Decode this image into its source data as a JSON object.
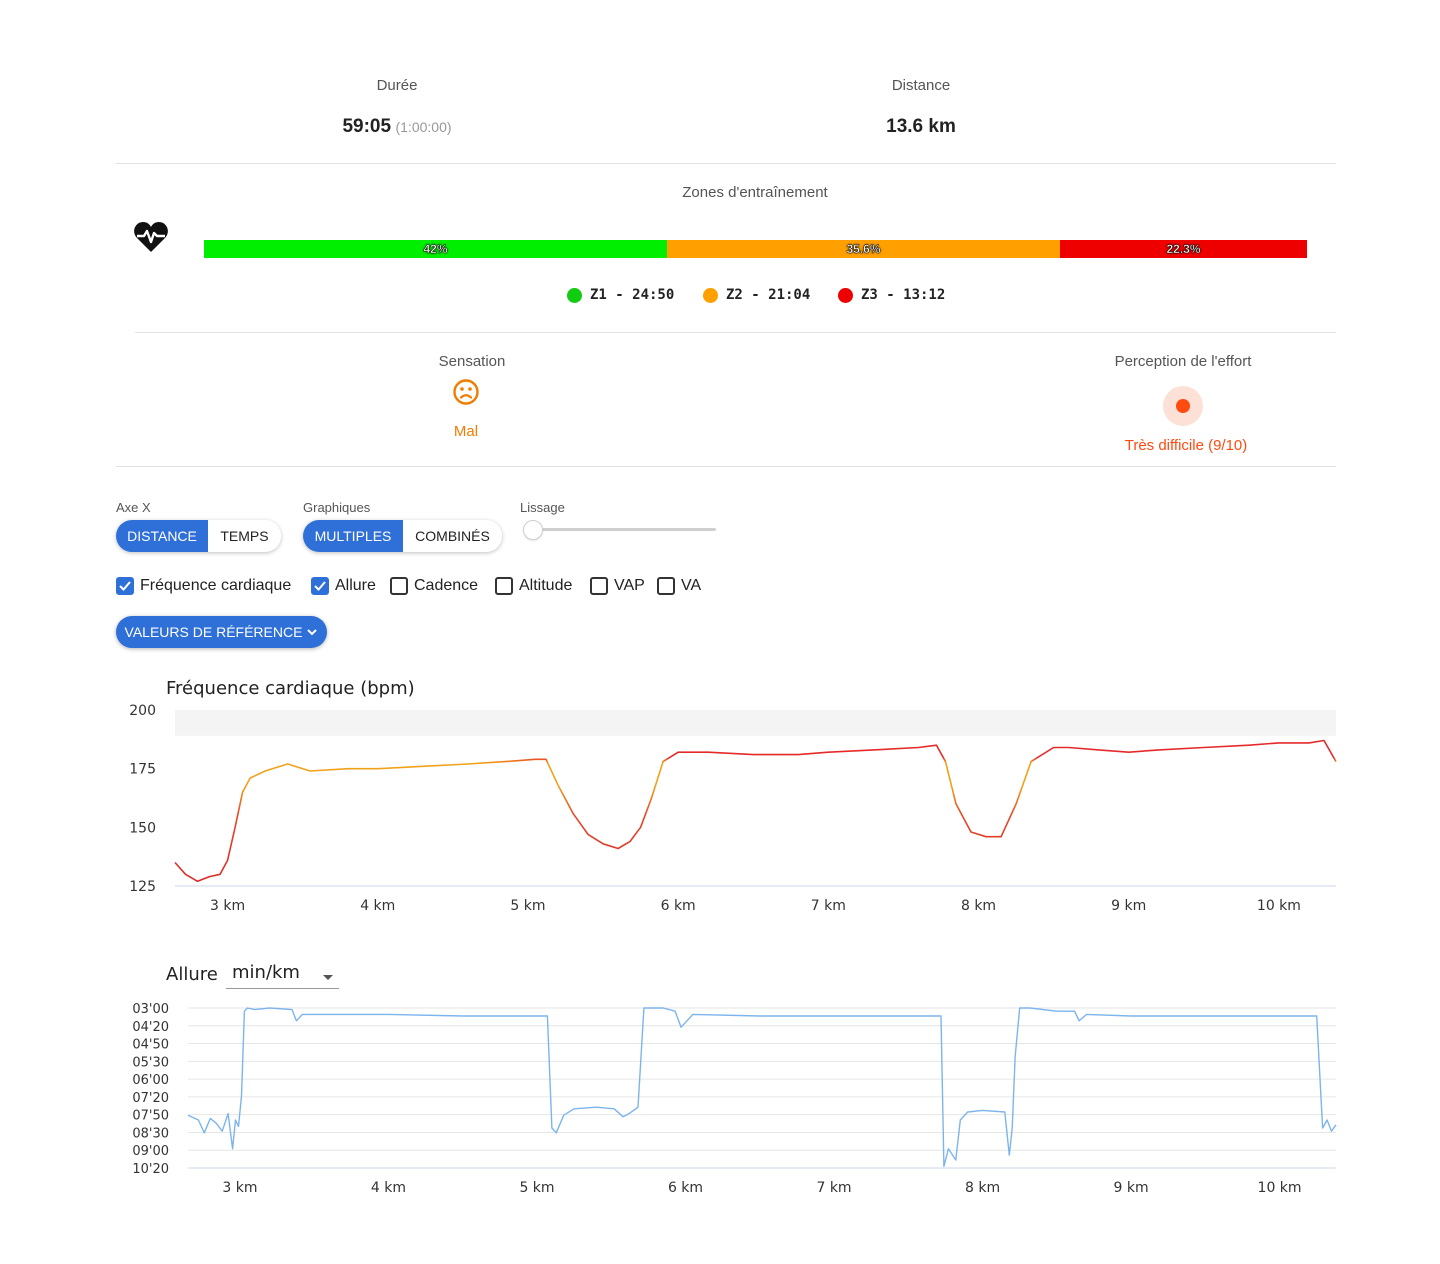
{
  "stats": {
    "duration": {
      "label": "Durée",
      "value": "59:05",
      "sub": "(1:00:00)"
    },
    "distance": {
      "label": "Distance",
      "value": "13.6 km"
    }
  },
  "zones": {
    "title": "Zones d'entraînement",
    "bars": [
      {
        "label": "42%",
        "fraction": 0.42,
        "color": "#00ee00"
      },
      {
        "label": "35.6%",
        "fraction": 0.356,
        "color": "#ffa000"
      },
      {
        "label": "22.3%",
        "fraction": 0.223,
        "color": "#ee0000"
      }
    ],
    "legend": [
      {
        "text": "Z1 - 24:50",
        "color": "#11cc11"
      },
      {
        "text": "Z2 - 21:04",
        "color": "#ffa000"
      },
      {
        "text": "Z3 - 13:12",
        "color": "#ee0000"
      }
    ]
  },
  "sensation": {
    "label": "Sensation",
    "value": "Mal",
    "color": "#ef7d00"
  },
  "effort": {
    "label": "Perception de l'effort",
    "value": "Très difficile (9/10)",
    "color": "#ff4a10"
  },
  "controls": {
    "axe_label": "Axe X",
    "axe_options": [
      "DISTANCE",
      "TEMPS"
    ],
    "graph_label": "Graphiques",
    "graph_options": [
      "MULTIPLES",
      "COMBINÉS"
    ],
    "smooth_label": "Lissage",
    "smooth_value": 0,
    "checkboxes": [
      {
        "label": "Fréquence cardiaque",
        "checked": true
      },
      {
        "label": "Allure",
        "checked": true
      },
      {
        "label": "Cadence",
        "checked": false
      },
      {
        "label": "Altitude",
        "checked": false
      },
      {
        "label": "VAP",
        "checked": false
      },
      {
        "label": "VA",
        "checked": false
      }
    ],
    "ref_button": "VALEURS DE RÉFÉRENCE"
  },
  "chart_data": [
    {
      "type": "line",
      "title": "Fréquence cardiaque (bpm)",
      "y_ticks": [
        "125",
        "150",
        "175",
        "200"
      ],
      "x_ticks": [
        "3 km",
        "4 km",
        "5 km",
        "6 km",
        "7 km",
        "8 km",
        "9 km",
        "10 km"
      ],
      "ylim": [
        125,
        200
      ],
      "xlim": [
        2.65,
        10.38
      ],
      "series": [
        {
          "x": [
            2.65,
            2.72,
            2.8,
            2.88,
            2.95,
            3.0,
            3.05,
            3.1,
            3.15,
            3.25,
            3.4,
            3.55,
            3.8,
            4.0,
            4.3,
            4.6,
            4.85,
            5.05,
            5.12,
            5.2,
            5.3,
            5.4,
            5.5,
            5.6,
            5.68,
            5.75,
            5.82,
            5.9,
            6.0,
            6.2,
            6.5,
            6.8,
            7.0,
            7.3,
            7.6,
            7.72,
            7.78,
            7.85,
            7.95,
            8.05,
            8.15,
            8.25,
            8.35,
            8.5,
            8.6,
            8.8,
            9.0,
            9.2,
            9.5,
            9.8,
            10.0,
            10.2,
            10.3,
            10.38
          ],
          "y": [
            135,
            130,
            127,
            129,
            130,
            136,
            150,
            165,
            171,
            174,
            177,
            174,
            175,
            175,
            176,
            177,
            178,
            179,
            179,
            168,
            156,
            147,
            143,
            141,
            144,
            150,
            162,
            178,
            182,
            182,
            181,
            181,
            182,
            183,
            184,
            185,
            178,
            160,
            148,
            146,
            146,
            160,
            178,
            184,
            184,
            183,
            182,
            183,
            184,
            185,
            186,
            186,
            187,
            178
          ]
        }
      ]
    },
    {
      "type": "line",
      "title": "Allure",
      "unit_select": "min/km",
      "y_ticks": [
        "03'00",
        "04'20",
        "04'50",
        "05'30",
        "06'00",
        "07'20",
        "07'50",
        "08'30",
        "09'00",
        "10'20"
      ],
      "x_ticks": [
        "3 km",
        "4 km",
        "5 km",
        "6 km",
        "7 km",
        "8 km",
        "9 km",
        "10 km"
      ],
      "xlim": [
        2.65,
        10.38
      ],
      "series": [
        {
          "x": [
            2.65,
            2.72,
            2.76,
            2.8,
            2.84,
            2.88,
            2.92,
            2.95,
            2.97,
            2.99,
            3.01,
            3.03,
            3.05,
            3.1,
            3.2,
            3.35,
            3.38,
            3.42,
            3.6,
            4.0,
            4.5,
            4.9,
            5.07,
            5.1,
            5.13,
            5.18,
            5.25,
            5.4,
            5.52,
            5.58,
            5.62,
            5.68,
            5.72,
            5.8,
            5.85,
            5.93,
            5.97,
            6.05,
            6.5,
            7.0,
            7.5,
            7.72,
            7.74,
            7.77,
            7.82,
            7.85,
            7.9,
            8.0,
            8.15,
            8.18,
            8.2,
            8.22,
            8.25,
            8.32,
            8.5,
            8.62,
            8.65,
            8.7,
            9.0,
            9.5,
            10.0,
            10.25,
            10.29,
            10.32,
            10.35,
            10.38
          ],
          "y": [
            0.67,
            0.7,
            0.78,
            0.69,
            0.72,
            0.77,
            0.66,
            0.88,
            0.7,
            0.74,
            0.55,
            0.02,
            0.0,
            0.01,
            0.0,
            0.01,
            0.08,
            0.04,
            0.04,
            0.04,
            0.05,
            0.05,
            0.05,
            0.75,
            0.78,
            0.67,
            0.63,
            0.62,
            0.63,
            0.68,
            0.66,
            0.62,
            0.0,
            0.0,
            0.0,
            0.02,
            0.12,
            0.04,
            0.05,
            0.05,
            0.05,
            0.05,
            0.99,
            0.88,
            0.95,
            0.7,
            0.65,
            0.64,
            0.65,
            0.92,
            0.75,
            0.3,
            0.0,
            0.0,
            0.02,
            0.02,
            0.08,
            0.04,
            0.05,
            0.05,
            0.05,
            0.05,
            0.75,
            0.7,
            0.77,
            0.73
          ],
          "note_units": "fraction of plot height from top"
        }
      ]
    }
  ]
}
